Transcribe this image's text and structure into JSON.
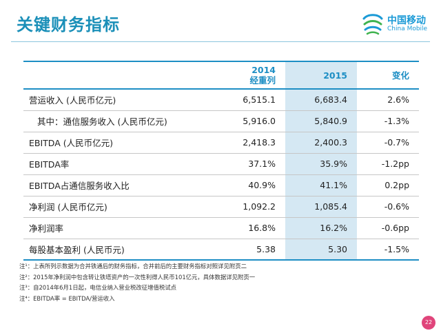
{
  "header": {
    "title": "关键财务指标",
    "logo": {
      "name_cn": "中国移动",
      "name_en": "China Mobile"
    }
  },
  "table": {
    "columns": [
      {
        "label": "",
        "label2": ""
      },
      {
        "label": "2014",
        "label2": "经重列"
      },
      {
        "label": "2015",
        "label2": ""
      },
      {
        "label": "变化",
        "label2": ""
      }
    ],
    "rows": [
      {
        "label": "营运收入 (人民币亿元)",
        "v2014": "6,515.1",
        "v2015": "6,683.4",
        "change": "2.6%"
      },
      {
        "label": "其中：通信服务收入 (人民币亿元)",
        "v2014": "5,916.0",
        "v2015": "5,840.9",
        "change": "-1.3%"
      },
      {
        "label": "EBITDA (人民币亿元)",
        "v2014": "2,418.3",
        "v2015": "2,400.3",
        "change": "-0.7%"
      },
      {
        "label": "EBITDA率",
        "v2014": "37.1%",
        "v2015": "35.9%",
        "change": "-1.2pp"
      },
      {
        "label": "EBITDA占通信服务收入比",
        "v2014": "40.9%",
        "v2015": "41.1%",
        "change": "0.2pp"
      },
      {
        "label": "净利润 (人民币亿元)",
        "v2014": "1,092.2",
        "v2015": "1,085.4",
        "change": "-0.6%"
      },
      {
        "label": "净利润率",
        "v2014": "16.8%",
        "v2015": "16.2%",
        "change": "-0.6pp"
      },
      {
        "label": "每股基本盈利 (人民币元)",
        "v2014": "5.38",
        "v2015": "5.30",
        "change": "-1.5%"
      }
    ]
  },
  "notes": [
    "注¹：上表所列示数据为合并铁通后的财务指标，合并前后的主要财务指标对照详见附页二",
    "注²：2015年净利润中包含转让铁塔资产的一次性利得人民币101亿元，具体数据详见附页一",
    "注³：自2014年6月1日起，电信业纳入营业税改征增值税试点",
    "注⁴：EBITDA率 = EBITDA/营运收入"
  ],
  "page_number": "22",
  "colors": {
    "title": "#1a8fb8",
    "table_accent": "#1d8ec4",
    "highlight_column": "#d5e8f3",
    "logo": "#1b9ad6",
    "page_badge": "#e0457b"
  }
}
